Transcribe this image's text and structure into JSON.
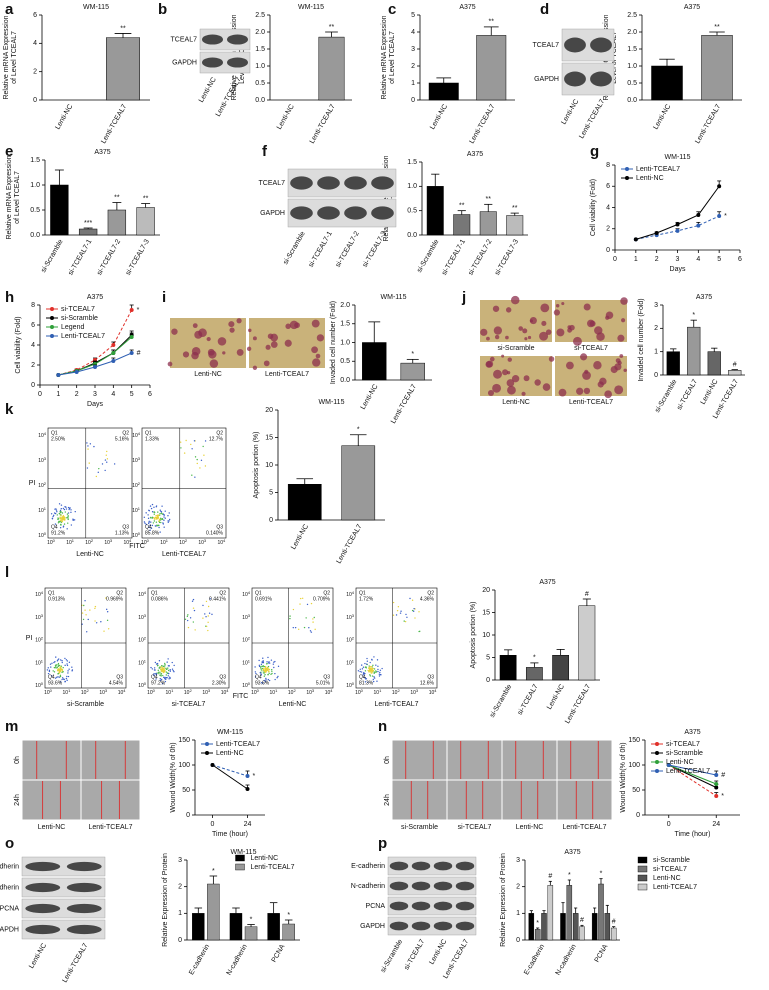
{
  "panel_letters": [
    "a",
    "b",
    "c",
    "d",
    "e",
    "f",
    "g",
    "h",
    "i",
    "j",
    "k",
    "l",
    "m",
    "n",
    "o",
    "p"
  ],
  "chart_data": [
    {
      "type": "bar",
      "title": "WM-115",
      "ylabel": [
        "Relative mRNA Expression",
        "of Level TCEAL7"
      ],
      "categories": [
        "Lenti-NC",
        "Lenti-TCEAL7"
      ],
      "values": [
        0,
        4.4
      ],
      "errors": [
        0,
        0.3
      ],
      "annotations": [
        null,
        "**"
      ],
      "colors": [
        "#000000",
        "#999999"
      ],
      "ylim": [
        0,
        6
      ],
      "yticks": [
        0,
        2,
        4,
        6
      ]
    },
    {
      "type": "bar",
      "title": "WM-115",
      "ylabel": [
        "Relative Protein Expression",
        "Level of TCEAL7"
      ],
      "categories": [
        "Lenti-NC",
        "Lenti-TCEAL7"
      ],
      "values": [
        0,
        1.85
      ],
      "errors": [
        0,
        0.15
      ],
      "annotations": [
        null,
        "**"
      ],
      "colors": [
        "#000000",
        "#999999"
      ],
      "ylim": [
        0,
        2.5
      ],
      "yticks": [
        {
          "value": 0,
          "label": "0.0"
        },
        0.5,
        {
          "value": 1,
          "label": "1.0"
        },
        1.5,
        {
          "value": 2,
          "label": "2.0"
        },
        2.5
      ]
    },
    {
      "type": "bar",
      "title": "A375",
      "ylabel": [
        "Relative mRNA Expression",
        "of Level TCEAL7"
      ],
      "categories": [
        "Lenti-NC",
        "Lenti-TCEAL7"
      ],
      "values": [
        1,
        3.8
      ],
      "errors": [
        0.3,
        0.5
      ],
      "annotations": [
        null,
        "**"
      ],
      "colors": [
        "#000000",
        "#999999"
      ],
      "ylim": [
        0,
        5
      ],
      "yticks": [
        0,
        1,
        2,
        3,
        4,
        5
      ]
    },
    {
      "type": "bar",
      "title": "A375",
      "ylabel": [
        "Relative Protein  Expression",
        "Level of TCEAL7"
      ],
      "categories": [
        "Lenti-NC",
        "Lenti-TCEAL7"
      ],
      "values": [
        1,
        1.9
      ],
      "errors": [
        0.2,
        0.1
      ],
      "annotations": [
        null,
        "**"
      ],
      "colors": [
        "#000000",
        "#999999"
      ],
      "ylim": [
        0,
        2.5
      ],
      "yticks": [
        {
          "value": 0,
          "label": "0.0"
        },
        0.5,
        {
          "value": 1,
          "label": "1.0"
        },
        1.5,
        {
          "value": 2,
          "label": "2.0"
        },
        2.5
      ]
    },
    {
      "type": "bar",
      "title": "A375",
      "ylabel": [
        "Relative mRNA Expression",
        "of Level TCEAL7"
      ],
      "categories": [
        "si-Scramble",
        "si-TCEAL7-1",
        "si-TCEAL7-2",
        "si-TCEAL7-3"
      ],
      "values": [
        1,
        0.12,
        0.5,
        0.55
      ],
      "errors": [
        0.3,
        0.02,
        0.15,
        0.08
      ],
      "annotations": [
        null,
        "***",
        "**",
        "**"
      ],
      "colors": [
        "#000000",
        "#777777",
        "#999999",
        "#bbbbbb"
      ],
      "ylim": [
        0,
        1.5
      ],
      "yticks": [
        {
          "value": 0,
          "label": "0.0"
        },
        0.5,
        {
          "value": 1,
          "label": "1.0"
        },
        1.5
      ]
    },
    {
      "type": "bar",
      "title": "A375",
      "ylabel": [
        "Relative Protein  Expression",
        "Level of TCEAL7"
      ],
      "categories": [
        "si-Scramble",
        "si-TCEAL7-1",
        "si-TCEAL7-2",
        "si-TCEAL7-3"
      ],
      "values": [
        1,
        0.42,
        0.48,
        0.4
      ],
      "errors": [
        0.25,
        0.08,
        0.15,
        0.05
      ],
      "annotations": [
        null,
        "**",
        "**",
        "**"
      ],
      "colors": [
        "#000000",
        "#777777",
        "#999999",
        "#bbbbbb"
      ],
      "ylim": [
        0,
        1.5
      ],
      "yticks": [
        {
          "value": 0,
          "label": "0.0"
        },
        0.5,
        {
          "value": 1,
          "label": "1.0"
        },
        1.5
      ]
    },
    {
      "type": "line",
      "title": "WM-115",
      "ylabel": [
        "Cell viability (Fold)"
      ],
      "xlabel": "Days",
      "x": [
        1,
        2,
        3,
        4,
        5
      ],
      "series": [
        {
          "name": "Lenti-TCEAL7",
          "color": "#2f5fb3",
          "dashed": true,
          "values": [
            1,
            1.4,
            1.8,
            2.3,
            3.2
          ],
          "errors": [
            0,
            0.1,
            0.2,
            0.3,
            0.4
          ],
          "annotation": "*"
        },
        {
          "name": "Lenti-NC",
          "color": "#000000",
          "values": [
            1,
            1.6,
            2.4,
            3.3,
            6
          ],
          "errors": [
            0,
            0.1,
            0.2,
            0.3,
            0.5
          ]
        }
      ],
      "legend": "upper left",
      "xlim": [
        0,
        6
      ],
      "xticks": [
        0,
        1,
        2,
        3,
        4,
        5,
        6
      ],
      "ylim": [
        0,
        8
      ],
      "yticks": [
        0,
        2,
        4,
        6,
        8
      ]
    },
    {
      "type": "line",
      "title": "A375",
      "ylabel": [
        "Cell viability (Fold)"
      ],
      "xlabel": "Days",
      "x": [
        1,
        2,
        3,
        4,
        5
      ],
      "series": [
        {
          "name": "si-TCEAL7",
          "color": "#e0302a",
          "dashed": true,
          "values": [
            1,
            1.5,
            2.5,
            4,
            7.5
          ],
          "errors": [
            0,
            0.1,
            0.2,
            0.3,
            0.5
          ],
          "annotation": "*"
        },
        {
          "name": "si-Scramble",
          "color": "#000000",
          "values": [
            1,
            1.4,
            2.2,
            3.2,
            5
          ],
          "errors": [
            0,
            0.1,
            0.2,
            0.3,
            0.4
          ]
        },
        {
          "name": "Legend",
          "color": "#2fa03a",
          "values": [
            1,
            1.4,
            2.1,
            3.2,
            4.8
          ],
          "errors": [
            0,
            0.1,
            0.2,
            0.3,
            0.4
          ]
        },
        {
          "name": "Lenti-TCEAL7",
          "color": "#2f5fb3",
          "values": [
            1,
            1.3,
            1.8,
            2.4,
            3.2
          ],
          "errors": [
            0,
            0.1,
            0.2,
            0.3,
            0.3
          ],
          "annotation": "#"
        }
      ],
      "legend": "upper left",
      "xlim": [
        0,
        6
      ],
      "xticks": [
        0,
        1,
        2,
        3,
        4,
        5,
        6
      ],
      "ylim": [
        0,
        8
      ],
      "yticks": [
        0,
        2,
        4,
        6,
        8
      ]
    },
    {
      "type": "bar",
      "title": "WM-115",
      "ylabel": [
        "Invaded cell number (Fold)"
      ],
      "categories": [
        "Lenti-NC",
        "Lenti-TCEAL7"
      ],
      "values": [
        1,
        0.45
      ],
      "errors": [
        0.55,
        0.1
      ],
      "annotations": [
        null,
        "*"
      ],
      "colors": [
        "#000000",
        "#999999"
      ],
      "ylim": [
        0,
        2
      ],
      "yticks": [
        {
          "value": 0,
          "label": "0.0"
        },
        0.5,
        {
          "value": 1,
          "label": "1.0"
        },
        1.5,
        {
          "value": 2,
          "label": "2.0"
        }
      ]
    },
    {
      "type": "bar",
      "title": "A375",
      "ylabel": [
        "Invaded cell number (Fold)"
      ],
      "categories": [
        "si-Scramble",
        "si-TCEAL7",
        "Lenti-NC",
        "Lenti-TCEAL7"
      ],
      "values": [
        1,
        2.05,
        1,
        0.2
      ],
      "errors": [
        0.12,
        0.3,
        0.15,
        0.03
      ],
      "annotations": [
        null,
        "*",
        null,
        "#"
      ],
      "colors": [
        "#000000",
        "#999999",
        "#666666",
        "#cccccc"
      ],
      "ylim": [
        0,
        3
      ],
      "yticks": [
        0,
        1,
        2,
        3
      ]
    },
    {
      "type": "bar",
      "title": "WM-115",
      "ylabel": [
        "Apoptosis portion (%)"
      ],
      "categories": [
        "Lenti-NC",
        "Lenti-TCEAL7"
      ],
      "values": [
        6.5,
        13.5
      ],
      "errors": [
        1,
        2
      ],
      "annotations": [
        null,
        "*"
      ],
      "colors": [
        "#000000",
        "#999999"
      ],
      "ylim": [
        0,
        20
      ],
      "yticks": [
        0,
        5,
        10,
        15,
        20
      ]
    },
    {
      "type": "bar",
      "title": "A375",
      "ylabel": [
        "Apoptosis portion (%)"
      ],
      "categories": [
        "si-Scramble",
        "si-TCEAL7",
        "Lenti-NC",
        "Lenti-TCEAL7"
      ],
      "values": [
        5.5,
        2.8,
        5.5,
        16.5
      ],
      "errors": [
        1.2,
        1,
        1.3,
        1.5
      ],
      "annotations": [
        null,
        "*",
        null,
        "#"
      ],
      "colors": [
        "#000000",
        "#666666",
        "#444444",
        "#cccccc"
      ],
      "ylim": [
        0,
        20
      ],
      "yticks": [
        0,
        5,
        10,
        15,
        20
      ]
    },
    {
      "type": "line",
      "title": "WM-115",
      "ylabel": [
        "Wound Width(% of 0h)"
      ],
      "xlabel": "Time (hour)",
      "x": [
        0,
        24
      ],
      "series": [
        {
          "name": "Lenti-TCEAL7",
          "color": "#2f5fb3",
          "dashed": true,
          "values": [
            100,
            78
          ],
          "errors": [
            0,
            10
          ],
          "annotation": "*"
        },
        {
          "name": "Lenti-NC",
          "color": "#000000",
          "values": [
            100,
            52
          ],
          "errors": [
            0,
            8
          ]
        }
      ],
      "legend": "upper left",
      "xlim": [
        -12,
        36
      ],
      "xticks": [
        0,
        24
      ],
      "ylim": [
        0,
        150
      ],
      "yticks": [
        0,
        50,
        100,
        150
      ]
    },
    {
      "type": "line",
      "title": "A375",
      "ylabel": [
        "Wound Width(% of 0h)"
      ],
      "xlabel": "Time (hour)",
      "x": [
        0,
        24
      ],
      "series": [
        {
          "name": "si-TCEAL7",
          "color": "#e0302a",
          "dashed": true,
          "values": [
            100,
            38
          ],
          "errors": [
            0,
            7
          ],
          "annotation": "*"
        },
        {
          "name": "si-Scramble",
          "color": "#000000",
          "values": [
            100,
            55
          ],
          "errors": [
            0,
            6
          ]
        },
        {
          "name": "Lenti-NC",
          "color": "#2fa03a",
          "values": [
            100,
            62
          ],
          "errors": [
            0,
            6
          ]
        },
        {
          "name": "Lenti-TCEAL7",
          "color": "#2f5fb3",
          "values": [
            100,
            80
          ],
          "errors": [
            0,
            8
          ],
          "annotation": "#"
        }
      ],
      "legend": "upper left",
      "xlim": [
        -12,
        36
      ],
      "xticks": [
        0,
        24
      ],
      "ylim": [
        0,
        150
      ],
      "yticks": [
        0,
        50,
        100,
        150
      ]
    },
    {
      "type": "grouped_bar",
      "title": "WM-115",
      "ylabel": [
        "Relative Expression of Protein"
      ],
      "categories": [
        "E-cadherin",
        "N-cadherin",
        "PCNA"
      ],
      "series": [
        {
          "name": "Lenti-NC",
          "color": "#000000",
          "values": [
            1,
            1,
            1
          ],
          "errors": [
            0.2,
            0.2,
            0.4
          ],
          "annotations": [
            null,
            null,
            null
          ]
        },
        {
          "name": "Lenti-TCEAL7",
          "color": "#999999",
          "values": [
            2.1,
            0.5,
            0.6
          ],
          "errors": [
            0.3,
            0.08,
            0.15
          ],
          "annotations": [
            "*",
            "*",
            "*"
          ]
        }
      ],
      "legend": "upper center",
      "ylim": [
        0,
        3
      ],
      "yticks": [
        0,
        1,
        2,
        3
      ]
    },
    {
      "type": "grouped_bar",
      "title": "A375",
      "ylabel": [
        "Relative Expression of Protein"
      ],
      "categories": [
        "E-cadherin",
        "N-cadherin",
        "PCNA"
      ],
      "series": [
        {
          "name": "si-Scramble",
          "color": "#000000",
          "values": [
            1,
            1,
            1
          ],
          "errors": [
            0.1,
            0.4,
            0.2
          ],
          "annotations": [
            null,
            null,
            null
          ]
        },
        {
          "name": "si-TCEAL7",
          "color": "#777777",
          "values": [
            0.4,
            2.05,
            2.1
          ],
          "errors": [
            0.05,
            0.2,
            0.2
          ],
          "annotations": [
            "*",
            "*",
            "*"
          ]
        },
        {
          "name": "Lenti-NC",
          "color": "#555555",
          "values": [
            1,
            1,
            1
          ],
          "errors": [
            0.1,
            0.2,
            0.3
          ],
          "annotations": [
            null,
            null,
            null
          ]
        },
        {
          "name": "Lenti-TCEAL7",
          "color": "#cccccc",
          "values": [
            2.05,
            0.5,
            0.45
          ],
          "errors": [
            0.15,
            0.05,
            0.05
          ],
          "annotations": [
            "#",
            "#",
            "#"
          ]
        }
      ],
      "legend": "right",
      "ylim": [
        0,
        3
      ],
      "yticks": [
        0,
        1,
        2,
        3
      ]
    }
  ],
  "blots": [
    {
      "rows": [
        "TCEAL7",
        "GAPDH"
      ],
      "lanes": [
        "Lenti-NC",
        "Lenti-TCEAL7"
      ]
    },
    {
      "rows": [
        "TCEAL7",
        "GAPDH"
      ],
      "lanes": [
        "Lenti-NC",
        "Lenti-TCEAL7"
      ]
    },
    {
      "rows": [
        "TCEAL7",
        "GAPDH"
      ],
      "lanes": [
        "si-Scramble",
        "si-TCEAL7-1",
        "si-TCEAL7-2",
        "si-TCEAL7-3"
      ]
    },
    {
      "rows": [
        "E-cadherin",
        "N-cadherin",
        "PCNA",
        "GAPDH"
      ],
      "lanes": [
        "Lenti-NC",
        "Lenti-TCEAL7"
      ]
    },
    {
      "rows": [
        "E-cadherin",
        "N-cadherin",
        "PCNA",
        "GAPDH"
      ],
      "lanes": [
        "si-Scramble",
        "si-TCEAL7",
        "Lenti-NC",
        "Lenti-TCEAL7"
      ]
    }
  ],
  "micrographs": [
    {
      "captions": [
        "Lenti-NC",
        "Lenti-TCEAL7"
      ]
    },
    {
      "captions": [
        "si-Scramble",
        "si-TCEAL7",
        "Lenti-NC",
        "Lenti-TCEAL7"
      ]
    }
  ],
  "flow": [
    {
      "ylabel": "PI",
      "xlabel": "FITC",
      "base": 10,
      "exponents": [
        0,
        1,
        2,
        3,
        4
      ],
      "plots": [
        {
          "caption": "Lenti-NC",
          "quadrants": [
            [
              "Q1",
              "2.50%"
            ],
            [
              "Q2",
              "5.16%"
            ],
            [
              "Q3",
              "1.13%"
            ],
            [
              "Q4",
              "91.2%"
            ]
          ]
        },
        {
          "caption": "Lenti-TCEAL7",
          "quadrants": [
            [
              "Q1",
              "1.33%"
            ],
            [
              "Q2",
              "12.7%"
            ],
            [
              "Q3",
              "0.140%"
            ],
            [
              "Q4",
              "85.8%"
            ]
          ]
        }
      ]
    },
    {
      "ylabel": "PI",
      "xlabel": "FITC",
      "base": 10,
      "exponents": [
        0,
        1,
        2,
        3,
        4
      ],
      "plots": [
        {
          "caption": "si-Scramble",
          "quadrants": [
            [
              "Q1",
              "0.913%"
            ],
            [
              "Q2",
              "0.969%"
            ],
            [
              "Q3",
              "4.54%"
            ],
            [
              "Q4",
              "93.6%"
            ]
          ]
        },
        {
          "caption": "si-TCEAL7",
          "quadrants": [
            [
              "Q1",
              "0.086%"
            ],
            [
              "Q2",
              "0.441%"
            ],
            [
              "Q3",
              "2.30%"
            ],
            [
              "Q4",
              "97.2%"
            ]
          ]
        },
        {
          "caption": "Lenti-NC",
          "quadrants": [
            [
              "Q1",
              "0.691%"
            ],
            [
              "Q2",
              "0.709%"
            ],
            [
              "Q3",
              "5.01%"
            ],
            [
              "Q4",
              "93.6%"
            ]
          ]
        },
        {
          "caption": "Lenti-TCEAL7",
          "quadrants": [
            [
              "Q1",
              "1.72%"
            ],
            [
              "Q2",
              "4.36%"
            ],
            [
              "Q3",
              "12.6%"
            ],
            [
              "Q4",
              "81.3%"
            ]
          ]
        }
      ]
    }
  ],
  "wound": [
    {
      "rows": [
        "0h",
        "24h"
      ],
      "captions": [
        "Lenti-NC",
        "Lenti-TCEAL7"
      ]
    },
    {
      "rows": [
        "0h",
        "24h"
      ],
      "captions": [
        "si-Scramble",
        "si-TCEAL7",
        "Lenti-NC",
        "Lenti-TCEAL7"
      ]
    }
  ]
}
